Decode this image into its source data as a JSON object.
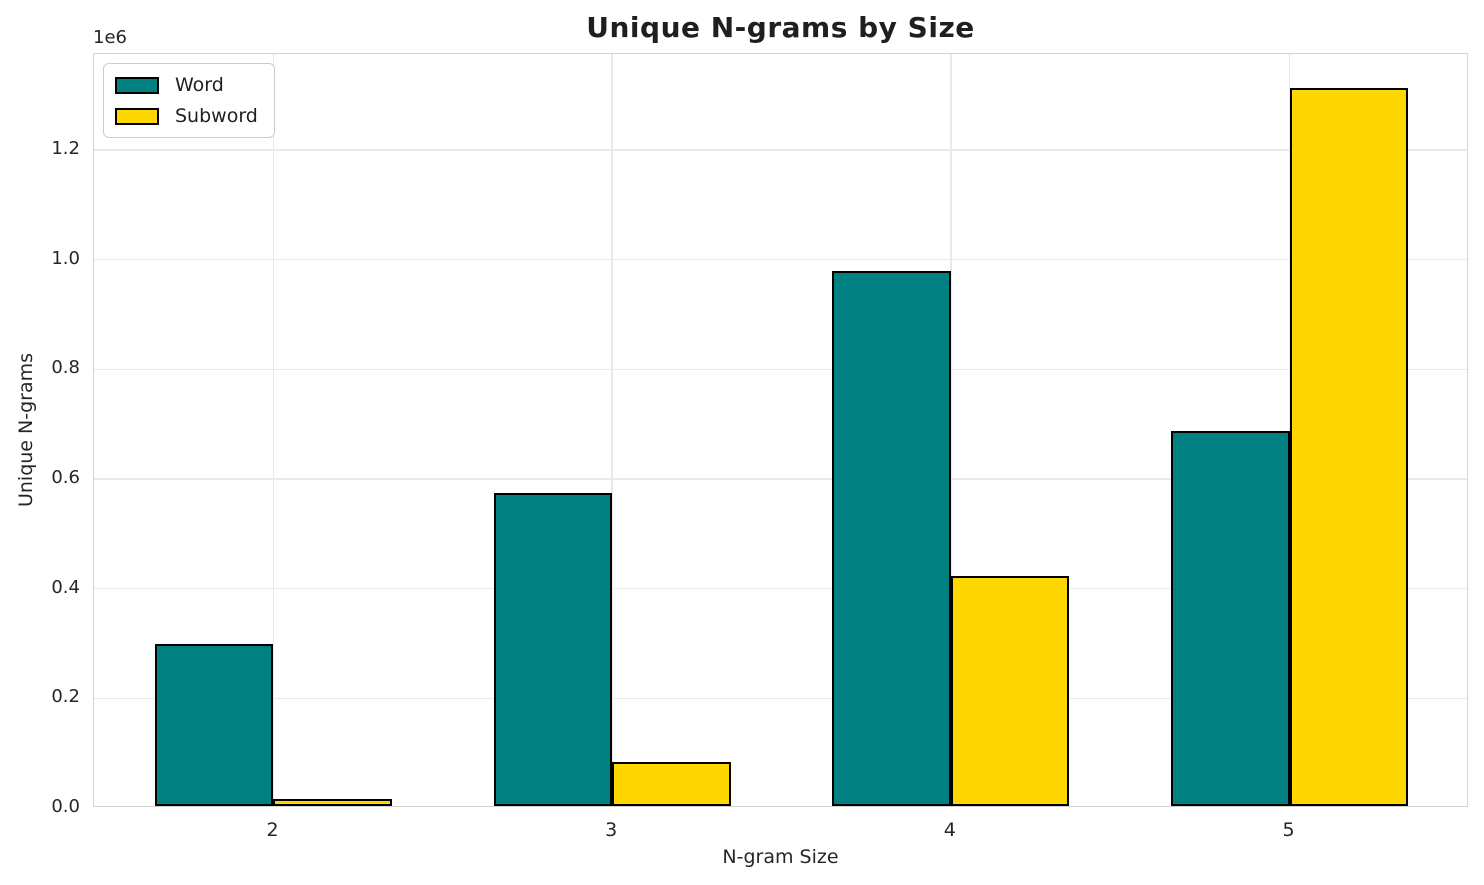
{
  "chart_data": {
    "type": "bar",
    "title": "Unique N-grams by Size",
    "xlabel": "N-gram Size",
    "ylabel": "Unique N-grams",
    "y_offset_label": "1e6",
    "categories": [
      "2",
      "3",
      "4",
      "5"
    ],
    "series": [
      {
        "name": "Word",
        "color": "#008080",
        "values": [
          296000,
          570000,
          975000,
          683000
        ]
      },
      {
        "name": "Subword",
        "color": "#FFD700",
        "values": [
          12000,
          80000,
          419000,
          1310000
        ]
      }
    ],
    "ylim": [
      0,
      1375000
    ],
    "yticks": [
      0,
      200000,
      400000,
      600000,
      800000,
      1000000,
      1200000
    ],
    "ytick_labels": [
      "0.0",
      "0.2",
      "0.4",
      "0.6",
      "0.8",
      "1.0",
      "1.2"
    ],
    "grid": true,
    "legend_position": "upper left",
    "bar_width_fraction": 0.35,
    "styles": {
      "bar_edge_color": "#000000",
      "grid_color": "#e9e9e9",
      "spine_color": "#d4d4d4",
      "text_color": "#262626",
      "background": "#ffffff"
    }
  }
}
